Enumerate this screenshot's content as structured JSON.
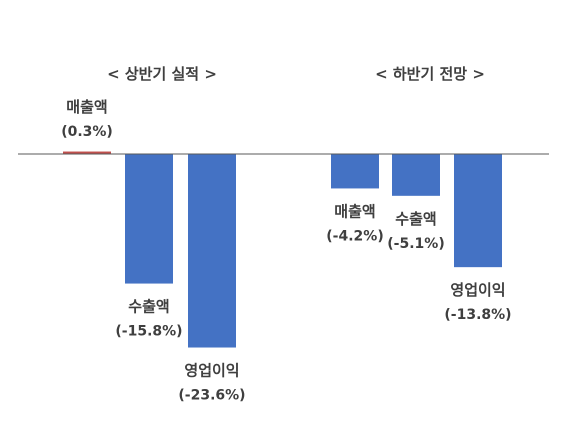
{
  "chart_data": {
    "type": "bar",
    "ylim": [
      -27,
      3
    ],
    "groups": [
      {
        "title": "< 상반기 실적 >",
        "bars": [
          {
            "category": "매출액",
            "value": 0.3,
            "value_label": "(0.3%)",
            "color": "#c0504d"
          },
          {
            "category": "수출액",
            "value": -15.8,
            "value_label": "(-15.8%)",
            "color": "#4472c4"
          },
          {
            "category": "영업이익",
            "value": -23.6,
            "value_label": "(-23.6%)",
            "color": "#4472c4"
          }
        ]
      },
      {
        "title": "< 하반기 전망 >",
        "bars": [
          {
            "category": "매출액",
            "value": -4.2,
            "value_label": "(-4.2%)",
            "color": "#4472c4"
          },
          {
            "category": "수출액",
            "value": -5.1,
            "value_label": "(-5.1%)",
            "color": "#4472c4"
          },
          {
            "category": "영업이익",
            "value": -13.8,
            "value_label": "(-13.8%)",
            "color": "#4472c4"
          }
        ]
      }
    ]
  }
}
